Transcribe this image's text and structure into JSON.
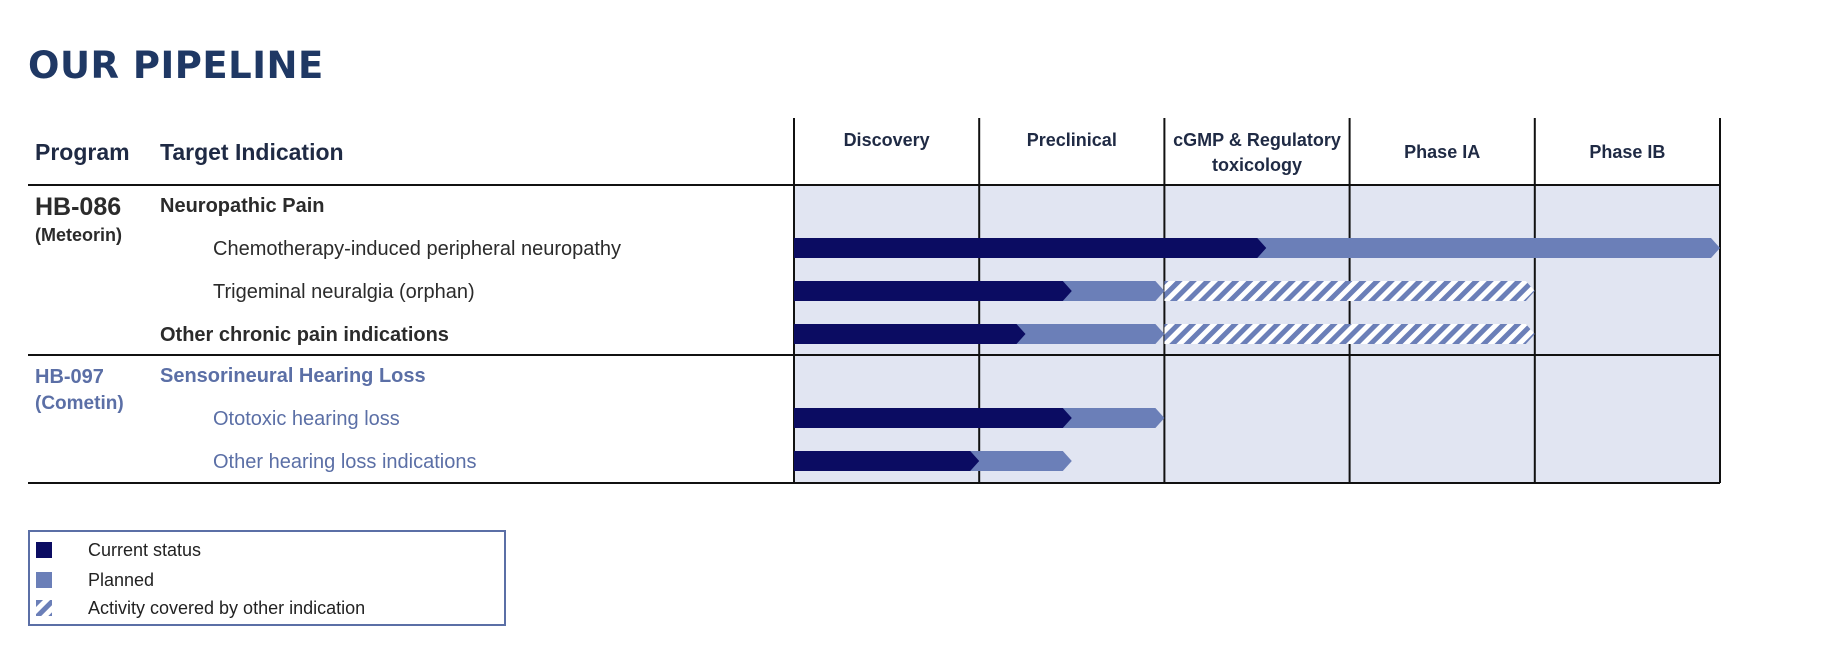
{
  "title": "OUR PIPELINE",
  "colors": {
    "current": "#0b0c62",
    "planned": "#6b7fb8",
    "cell_bg": "#e1e5f2",
    "hb086_text": "#2b2b2b",
    "hb097_text": "#5b6fa6",
    "title": "#1f3864"
  },
  "chart_data": {
    "type": "bar",
    "columns": {
      "program": "Program",
      "indication": "Target Indication"
    },
    "stages": [
      "Discovery",
      "Preclinical",
      "cGMP & Regulatory toxicology",
      "Phase IA",
      "Phase IB"
    ],
    "programs": [
      {
        "code": "HB-086",
        "name": "(Meteorin)",
        "indication": "Neuropathic Pain",
        "rows": [
          {
            "label": "Chemotherapy-induced peripheral neuropathy",
            "bold": false,
            "current": 2.55,
            "planned": 5.0,
            "covered": null
          },
          {
            "label": "Trigeminal neuralgia (orphan)",
            "bold": false,
            "current": 1.5,
            "planned": 2.0,
            "covered": 4.0
          },
          {
            "label": "Other chronic pain indications",
            "bold": true,
            "current": 1.25,
            "planned": 2.0,
            "covered": 4.0
          }
        ]
      },
      {
        "code": "HB-097",
        "name": "(Cometin)",
        "indication": "Sensorineural Hearing Loss",
        "rows": [
          {
            "label": "Ototoxic hearing loss",
            "bold": false,
            "current": 1.5,
            "planned": 2.0,
            "covered": null
          },
          {
            "label": "Other hearing loss indications",
            "bold": false,
            "current": 1.0,
            "planned": 1.5,
            "covered": null
          }
        ]
      }
    ],
    "legend": [
      {
        "key": "current",
        "label": "Current status"
      },
      {
        "key": "planned",
        "label": "Planned"
      },
      {
        "key": "covered",
        "label": "Activity covered by other indication"
      }
    ]
  }
}
